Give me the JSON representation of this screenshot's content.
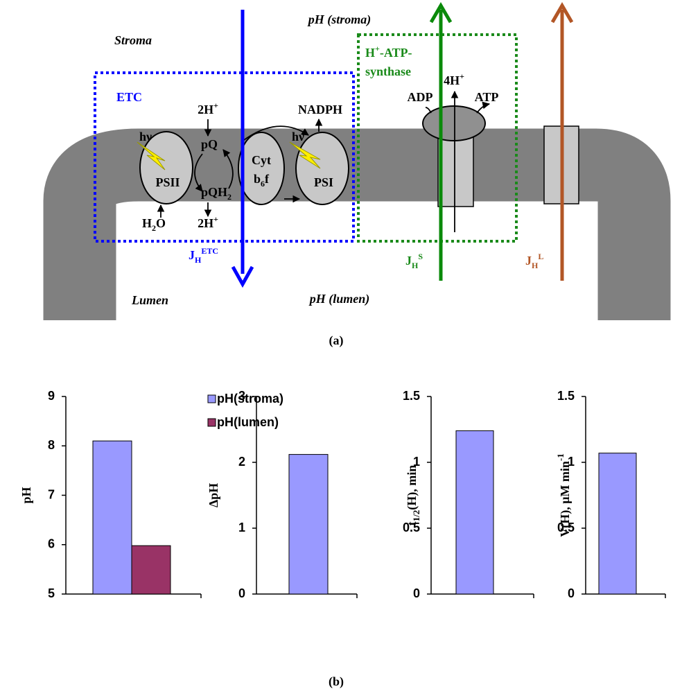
{
  "diagram": {
    "stroma": "Stroma",
    "lumen": "Lumen",
    "ph_stroma": "pH (stroma)",
    "ph_lumen": "pH (lumen)",
    "etc": "ETC",
    "synthase_1": [
      "H",
      "+",
      "-ATP-"
    ],
    "synthase_2": "synthase",
    "adp": "ADP",
    "h4": [
      "4H",
      "+"
    ],
    "atp": "ATP",
    "nadph": "NADPH",
    "h2_top": [
      "2H",
      "+"
    ],
    "pq": "pQ",
    "pqh2": [
      "pQH",
      "2"
    ],
    "h2_bottom": [
      "2H",
      "+"
    ],
    "h2o": [
      "H",
      "2",
      "O"
    ],
    "psii": "PSII",
    "cyt": "Cyt",
    "b6f": [
      "b",
      "6",
      "f"
    ],
    "psi": "PSI",
    "hv": [
      "hν",
      "hν"
    ],
    "j_etc": [
      "J",
      "H",
      "ETC"
    ],
    "j_s": [
      "J",
      "H",
      "S"
    ],
    "j_l": [
      "J",
      "H",
      "L"
    ]
  },
  "caption_a": "(a)",
  "chart_data": [
    {
      "type": "bar",
      "categories": [
        null
      ],
      "ylabel": [
        "pH"
      ],
      "ylim": [
        5,
        9
      ],
      "yticks": [
        5,
        6,
        7,
        8,
        9
      ],
      "legend": "top-right",
      "series": [
        {
          "name": "pH(stroma)",
          "color": "#9999ff",
          "values": [
            8.1
          ]
        },
        {
          "name": "pH(lumen)",
          "color": "#993366",
          "values": [
            5.98
          ]
        }
      ]
    },
    {
      "type": "bar",
      "categories": [
        null
      ],
      "ylabel": [
        "ΔpH"
      ],
      "ylim": [
        0,
        3
      ],
      "yticks": [
        0,
        1,
        2,
        3
      ],
      "series": [
        {
          "color": "#9999ff",
          "values": [
            2.12
          ]
        }
      ]
    },
    {
      "type": "bar",
      "categories": [
        null
      ],
      "ylabel": [
        "t",
        "1/2",
        "(H), min"
      ],
      "ylim": [
        0,
        1.5
      ],
      "yticks": [
        0,
        0.5,
        1,
        1.5
      ],
      "series": [
        {
          "color": "#9999ff",
          "values": [
            1.24
          ]
        }
      ]
    },
    {
      "type": "bar",
      "categories": [
        null
      ],
      "ylabel": [
        "V(H), μM min",
        "-1"
      ],
      "ylim": [
        0,
        1.5
      ],
      "yticks": [
        0,
        0.5,
        1,
        1.5
      ],
      "series": [
        {
          "color": "#9999ff",
          "values": [
            1.07
          ]
        }
      ]
    }
  ],
  "caption_b": "(b)"
}
